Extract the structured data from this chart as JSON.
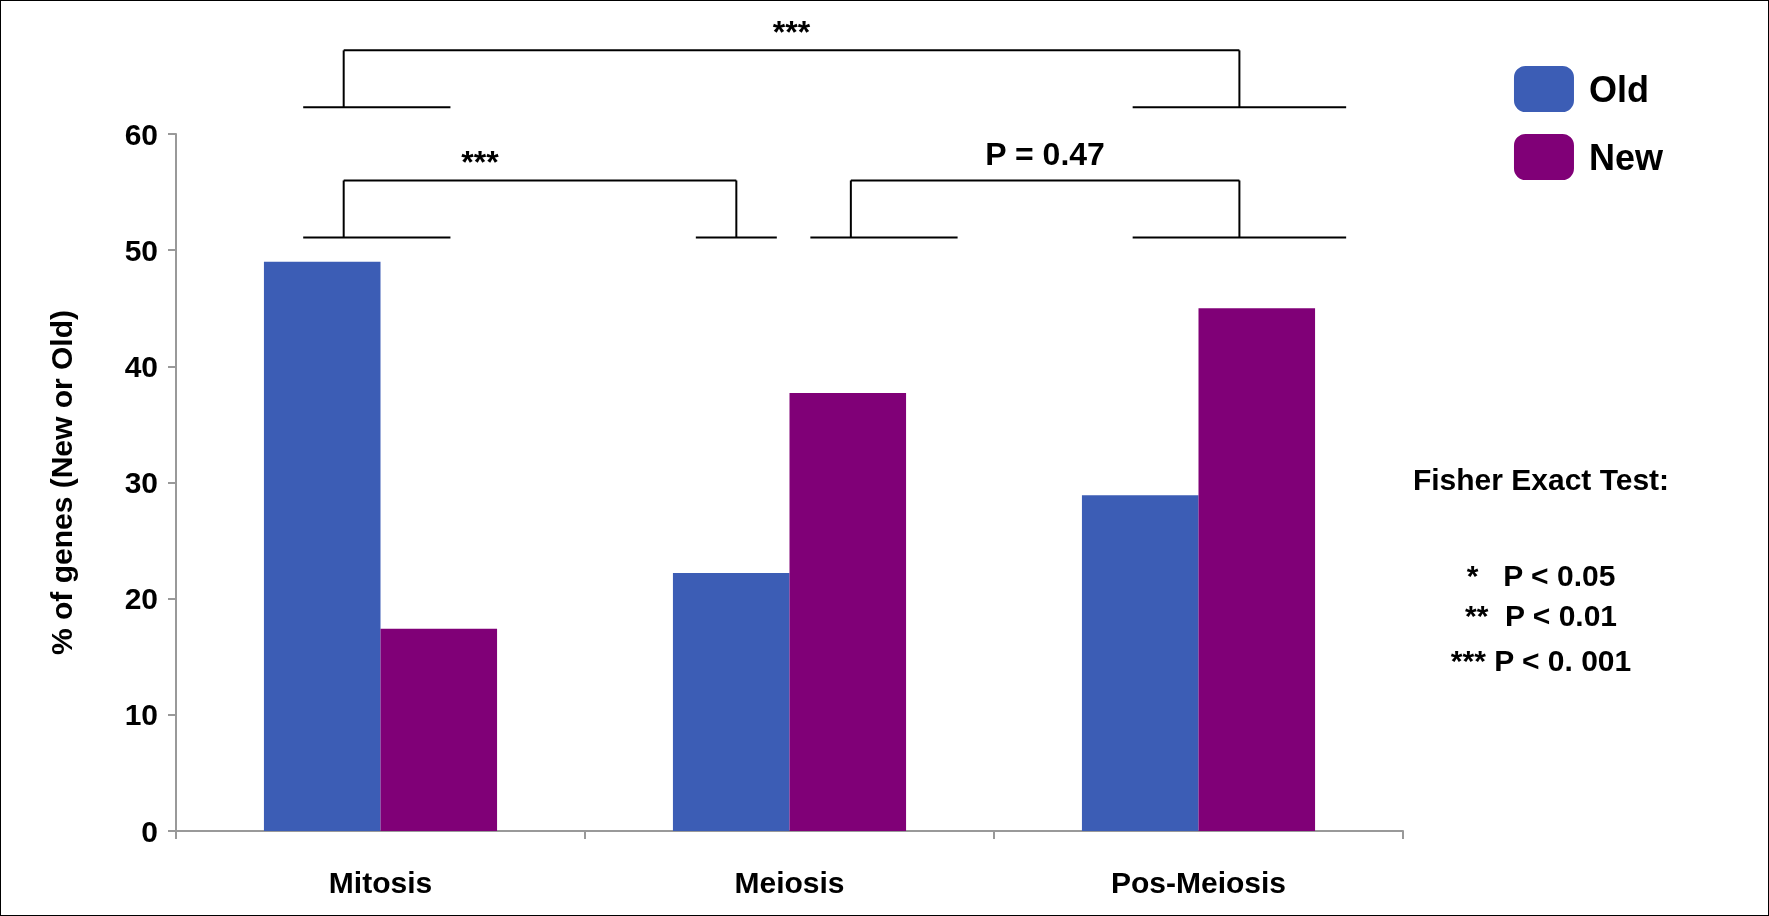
{
  "chart_data": {
    "type": "bar",
    "ylabel": "% of genes (New or Old)",
    "categories": [
      "Mitosis",
      "Meiosis",
      "Pos-Meiosis"
    ],
    "series": [
      {
        "name": "Old",
        "color": "#3c5db5",
        "values": [
          49,
          22.2,
          28.9
        ]
      },
      {
        "name": "New",
        "color": "#800077",
        "values": [
          17.4,
          37.7,
          45
        ]
      }
    ],
    "ylim": [
      0,
      60
    ],
    "yticks": [
      0,
      10,
      20,
      30,
      40,
      50,
      60
    ],
    "grid": false,
    "legend": "top right",
    "annotations": [
      "***",
      "***",
      "P = 0.47",
      "Fisher Exact Test:",
      "*   P < 0.05",
      "**  P < 0.01",
      "*** P < 0. 001"
    ]
  }
}
